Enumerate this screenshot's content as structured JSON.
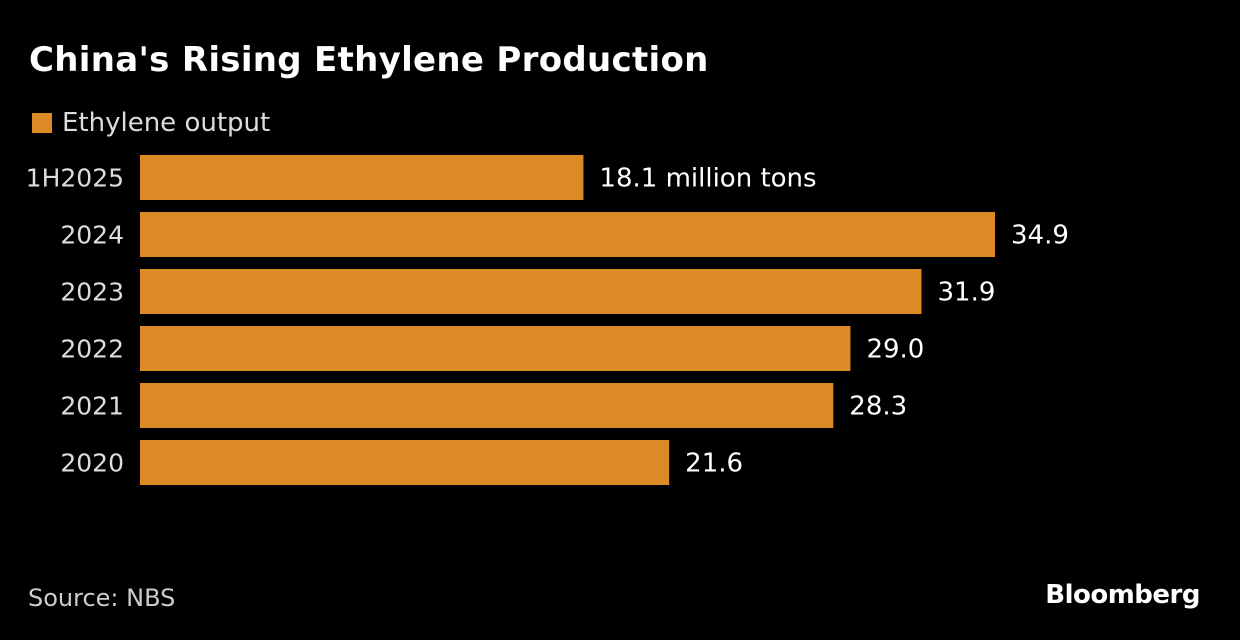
{
  "chart_data": {
    "type": "bar",
    "orientation": "horizontal",
    "title": "China's Rising Ethylene Production",
    "categories": [
      "1H2025",
      "2024",
      "2023",
      "2022",
      "2021",
      "2020"
    ],
    "series": [
      {
        "name": "Ethylene output",
        "values": [
          18.1,
          34.9,
          31.9,
          29.0,
          28.3,
          21.6
        ]
      }
    ],
    "data_labels": [
      "18.1 million tons",
      "34.9",
      "31.9",
      "29.0",
      "28.3",
      "21.6"
    ],
    "xlim": [
      0,
      34.9
    ],
    "grid": false,
    "legend_position": "top-left",
    "color": "#DC8A26"
  },
  "source": "Source: NBS",
  "brand": "Bloomberg"
}
